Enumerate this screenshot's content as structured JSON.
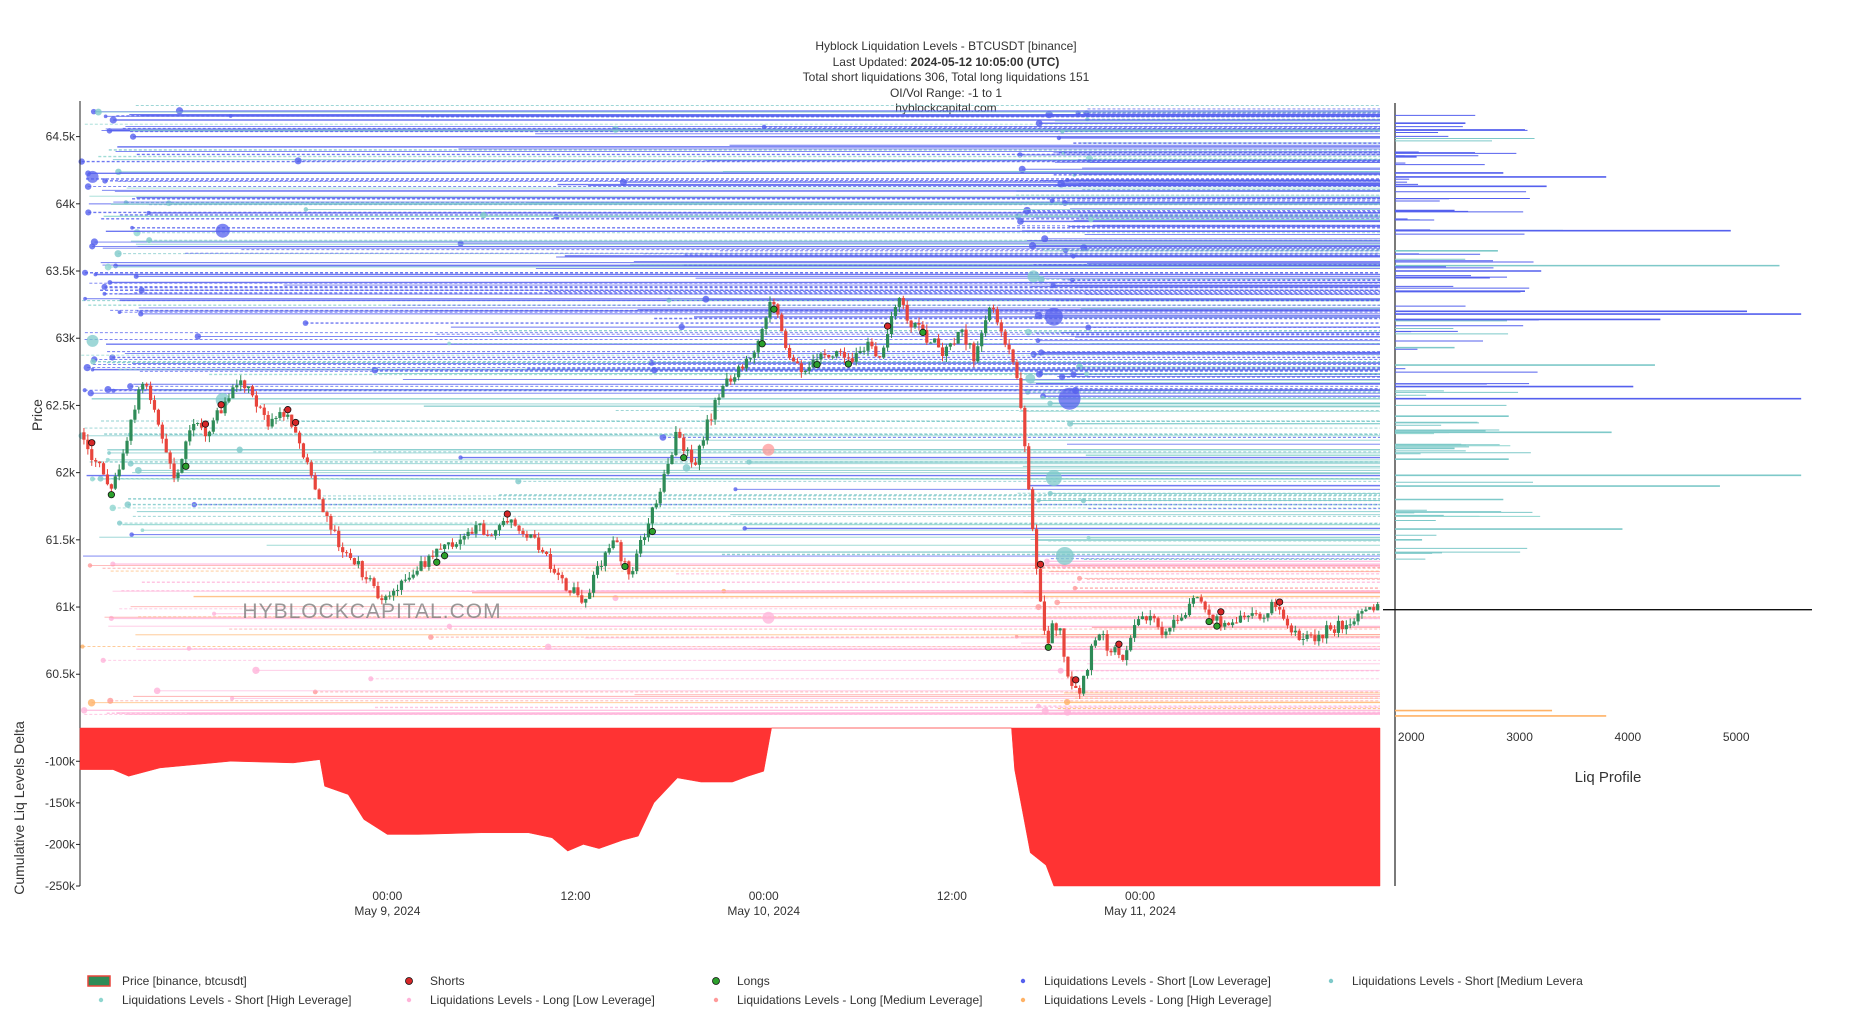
{
  "header": {
    "title": "Hyblock Liquidation Levels - BTCUSDT [binance]",
    "updated_label": "Last Updated:",
    "updated_value": "2024-05-12 10:05:00 (UTC)",
    "totals": "Total short liquidations 306, Total long liquidations 151",
    "range": "OI/Vol Range: -1 to 1",
    "site": "hyblockcapital.com"
  },
  "watermark": "HYBLOCKCAPITAL.COM",
  "chart_data": {
    "type": "candlestick",
    "title": "Hyblock Liquidation Levels - BTCUSDT [binance]",
    "price_axis": {
      "label": "Price",
      "ylim": [
        60100,
        64750
      ],
      "ticks": [
        60500,
        61000,
        61500,
        62000,
        62500,
        63000,
        63500,
        64000,
        64500
      ],
      "tick_labels": [
        "60.5k",
        "61k",
        "61.5k",
        "62k",
        "62.5k",
        "63k",
        "63.5k",
        "64k",
        "64.5k"
      ]
    },
    "time_axis": {
      "range_hours": [
        -19.6,
        63.3
      ],
      "ticks": [
        0,
        12,
        24,
        36,
        48
      ],
      "tick_labels": [
        [
          "00:00",
          "May 9, 2024"
        ],
        [
          "12:00",
          ""
        ],
        [
          "00:00",
          "May 10, 2024"
        ],
        [
          "12:00",
          ""
        ],
        [
          "00:00",
          "May 11, 2024"
        ]
      ]
    },
    "price_path": [
      [
        -19.6,
        62300
      ],
      [
        -18.5,
        62050
      ],
      [
        -17.5,
        61900
      ],
      [
        -16.5,
        62300
      ],
      [
        -15.5,
        62750
      ],
      [
        -14.5,
        62300
      ],
      [
        -13.5,
        61950
      ],
      [
        -12.5,
        62350
      ],
      [
        -11.5,
        62300
      ],
      [
        -10.5,
        62500
      ],
      [
        -9.5,
        62700
      ],
      [
        -8.5,
        62550
      ],
      [
        -7.5,
        62350
      ],
      [
        -6.5,
        62450
      ],
      [
        -5.5,
        62200
      ],
      [
        -4.5,
        61850
      ],
      [
        -3.5,
        61550
      ],
      [
        -2.5,
        61400
      ],
      [
        -1.5,
        61250
      ],
      [
        -0.5,
        61050
      ],
      [
        0.5,
        61100
      ],
      [
        1.5,
        61250
      ],
      [
        2.5,
        61350
      ],
      [
        3.5,
        61450
      ],
      [
        4.5,
        61500
      ],
      [
        5.5,
        61600
      ],
      [
        6.5,
        61550
      ],
      [
        7.5,
        61650
      ],
      [
        8.5,
        61600
      ],
      [
        9.5,
        61500
      ],
      [
        10.5,
        61300
      ],
      [
        11.5,
        61150
      ],
      [
        12.5,
        61050
      ],
      [
        13.5,
        61300
      ],
      [
        14.5,
        61500
      ],
      [
        15.5,
        61200
      ],
      [
        16.5,
        61600
      ],
      [
        17.5,
        61900
      ],
      [
        18.5,
        62300
      ],
      [
        19.5,
        62050
      ],
      [
        20.5,
        62400
      ],
      [
        21.5,
        62650
      ],
      [
        22.5,
        62800
      ],
      [
        23.5,
        62900
      ],
      [
        24.5,
        63300
      ],
      [
        25.5,
        62900
      ],
      [
        26.5,
        62750
      ],
      [
        27.5,
        62850
      ],
      [
        28.5,
        62900
      ],
      [
        29.5,
        62850
      ],
      [
        30.5,
        62950
      ],
      [
        31.5,
        62850
      ],
      [
        32.5,
        63300
      ],
      [
        33.5,
        63100
      ],
      [
        34.5,
        63000
      ],
      [
        35.5,
        62900
      ],
      [
        36.5,
        63050
      ],
      [
        37.5,
        62850
      ],
      [
        38.5,
        63300
      ],
      [
        39.5,
        62950
      ],
      [
        40.1,
        62750
      ],
      [
        40.5,
        62400
      ],
      [
        40.9,
        61900
      ],
      [
        41.3,
        61400
      ],
      [
        41.7,
        60950
      ],
      [
        42.1,
        60700
      ],
      [
        42.5,
        60900
      ],
      [
        42.9,
        60800
      ],
      [
        43.3,
        60500
      ],
      [
        43.7,
        60400
      ],
      [
        44.1,
        60350
      ],
      [
        44.5,
        60500
      ],
      [
        45.0,
        60750
      ],
      [
        45.5,
        60850
      ],
      [
        46.0,
        60650
      ],
      [
        46.5,
        60700
      ],
      [
        47.0,
        60600
      ],
      [
        47.5,
        60850
      ],
      [
        48.5,
        60950
      ],
      [
        49.5,
        60800
      ],
      [
        50.5,
        60900
      ],
      [
        51.5,
        61050
      ],
      [
        52.5,
        60950
      ],
      [
        53.5,
        60850
      ],
      [
        54.5,
        60950
      ],
      [
        55.5,
        60900
      ],
      [
        56.5,
        61050
      ],
      [
        57.5,
        60850
      ],
      [
        58.5,
        60750
      ],
      [
        59.5,
        60800
      ],
      [
        60.5,
        60850
      ],
      [
        61.5,
        60900
      ],
      [
        62.5,
        60950
      ],
      [
        63.3,
        61000
      ]
    ],
    "current_price": 60980,
    "cumulative_delta": {
      "label": "Cumulative Liq Levels Delta",
      "ylim": [
        -250000,
        -60000
      ],
      "ticks": [
        -100000,
        -150000,
        -200000,
        -250000
      ],
      "tick_labels": [
        "-100k",
        "-150k",
        "-200k",
        "-250k"
      ],
      "points": [
        [
          -19.6,
          -110000
        ],
        [
          -17.5,
          -110000
        ],
        [
          -16.5,
          -118000
        ],
        [
          -14.5,
          -108000
        ],
        [
          -10.0,
          -100000
        ],
        [
          -6.0,
          -102000
        ],
        [
          -4.3,
          -98000
        ],
        [
          -4.0,
          -130000
        ],
        [
          -2.5,
          -140000
        ],
        [
          -1.5,
          -170000
        ],
        [
          0.0,
          -188000
        ],
        [
          2.0,
          -188000
        ],
        [
          6.0,
          -186000
        ],
        [
          9.0,
          -186000
        ],
        [
          10.5,
          -192000
        ],
        [
          11.5,
          -208000
        ],
        [
          12.5,
          -200000
        ],
        [
          13.5,
          -205000
        ],
        [
          15.0,
          -195000
        ],
        [
          16.0,
          -190000
        ],
        [
          17.0,
          -150000
        ],
        [
          18.5,
          -120000
        ],
        [
          20.0,
          -125000
        ],
        [
          22.0,
          -125000
        ],
        [
          23.0,
          -118000
        ],
        [
          24.0,
          -112000
        ],
        [
          24.5,
          -60000
        ],
        [
          39.8,
          -60000
        ],
        [
          40.0,
          -110000
        ],
        [
          40.5,
          -160000
        ],
        [
          41.0,
          -210000
        ],
        [
          42.0,
          -225000
        ],
        [
          42.5,
          -250000
        ],
        [
          63.3,
          -250000
        ]
      ]
    },
    "liq_profile": {
      "label": "Liq Profile",
      "xlim": [
        1850,
        5700
      ],
      "ticks": [
        2000,
        3000,
        4000,
        5000
      ],
      "tick_labels": [
        "2000",
        "3000",
        "4000",
        "5000"
      ],
      "bars": [
        {
          "price": 64600,
          "value": 2500,
          "type": "short_low"
        },
        {
          "price": 64550,
          "value": 3050,
          "type": "short_low"
        },
        {
          "price": 64350,
          "value": 2050,
          "type": "short_low"
        },
        {
          "price": 64230,
          "value": 2850,
          "type": "short_low"
        },
        {
          "price": 64200,
          "value": 3800,
          "type": "short_low"
        },
        {
          "price": 64130,
          "value": 3250,
          "type": "short_low"
        },
        {
          "price": 63950,
          "value": 2400,
          "type": "short_low"
        },
        {
          "price": 63800,
          "value": 3400,
          "type": "short_medium"
        },
        {
          "price": 63800,
          "value": 4950,
          "type": "short_low"
        },
        {
          "price": 63650,
          "value": 2800,
          "type": "short_medium"
        },
        {
          "price": 63540,
          "value": 5400,
          "type": "short_medium"
        },
        {
          "price": 63500,
          "value": 3200,
          "type": "short_low"
        },
        {
          "price": 63350,
          "value": 3050,
          "type": "short_low"
        },
        {
          "price": 63200,
          "value": 5100,
          "type": "short_low"
        },
        {
          "price": 63180,
          "value": 5600,
          "type": "short_low"
        },
        {
          "price": 63140,
          "value": 4300,
          "type": "short_low"
        },
        {
          "price": 62930,
          "value": 2400,
          "type": "short_medium"
        },
        {
          "price": 62800,
          "value": 4250,
          "type": "short_medium"
        },
        {
          "price": 62640,
          "value": 4050,
          "type": "short_low"
        },
        {
          "price": 62550,
          "value": 5600,
          "type": "short_low"
        },
        {
          "price": 62420,
          "value": 2900,
          "type": "short_medium"
        },
        {
          "price": 62300,
          "value": 3850,
          "type": "short_medium"
        },
        {
          "price": 62180,
          "value": 2400,
          "type": "short_medium"
        },
        {
          "price": 62100,
          "value": 2900,
          "type": "short_medium"
        },
        {
          "price": 61980,
          "value": 5600,
          "type": "short_medium"
        },
        {
          "price": 61900,
          "value": 4850,
          "type": "short_medium"
        },
        {
          "price": 61800,
          "value": 2850,
          "type": "short_medium"
        },
        {
          "price": 61680,
          "value": 2300,
          "type": "short_medium"
        },
        {
          "price": 61580,
          "value": 3950,
          "type": "short_medium"
        },
        {
          "price": 61500,
          "value": 2100,
          "type": "short_medium"
        },
        {
          "price": 60230,
          "value": 3300,
          "type": "long_high"
        },
        {
          "price": 60190,
          "value": 3800,
          "type": "long_high"
        }
      ]
    },
    "colors": {
      "short_low": "#5560ee",
      "short_medium": "#7ec9c9",
      "short_high": "#8fd6cf",
      "long_low": "#ffb3d9",
      "long_medium": "#ff9a9a",
      "long_high": "#ffb266",
      "up_candle": "#2e8b57",
      "down_candle": "#e8453c",
      "shorts_marker": "#d62728",
      "longs_marker": "#2ca02c",
      "delta_fill": "#ff3333"
    }
  },
  "legend": [
    {
      "label": "Price [binance, btcusdt]",
      "kind": "candle"
    },
    {
      "label": "Shorts",
      "kind": "marker",
      "color": "#d62728"
    },
    {
      "label": "Longs",
      "kind": "marker",
      "color": "#2ca02c"
    },
    {
      "label": "Liquidations Levels - Short [Low Leverage]",
      "kind": "dot",
      "color": "#5560ee"
    },
    {
      "label": "Liquidations Levels - Short [Medium Levera",
      "kind": "dot",
      "color": "#7ec9c9"
    },
    {
      "label": "Liquidations Levels - Short [High Leverage]",
      "kind": "dot",
      "color": "#8fd6cf"
    },
    {
      "label": "Liquidations Levels - Long [Low Leverage]",
      "kind": "dot",
      "color": "#ffb3d9"
    },
    {
      "label": "Liquidations Levels - Long [Medium Leverage]",
      "kind": "dot",
      "color": "#ff9a9a"
    },
    {
      "label": "Liquidations Levels - Long [High Leverage]",
      "kind": "dot",
      "color": "#ffb266"
    }
  ]
}
